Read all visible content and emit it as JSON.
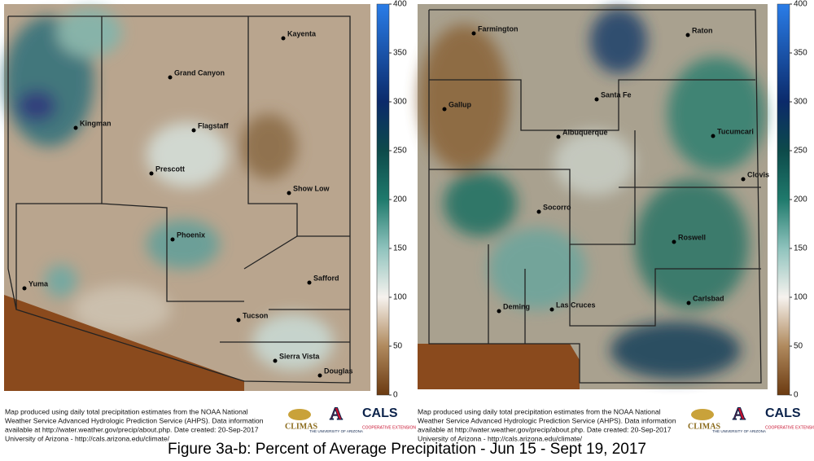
{
  "panels": [
    {
      "cities": [
        "Kayenta",
        "Grand Canyon",
        "Kingman",
        "Flagstaff",
        "Prescott",
        "Show Low",
        "Phoenix",
        "Safford",
        "Yuma",
        "Tucson",
        "Sierra Vista",
        "Douglas"
      ],
      "colorbar": {
        "range": [
          0,
          400
        ],
        "ticks": [
          0,
          50,
          100,
          150,
          200,
          250,
          300,
          350,
          400
        ]
      },
      "footer": [
        "Map produced using daily total precipitation estimates from the NOAA National",
        "Weather Service Advanced Hydrologic Prediction Service (AHPS). Data information",
        "available at http://water.weather.gov/precip/about.php. Date created: 20-Sep-2017",
        "University of Arizona - http://cals.arizona.edu/climate/"
      ],
      "logos": {
        "climas": "CLIMAS",
        "ua": "THE UNIVERSITY OF ARIZONA",
        "cals": "CALS",
        "extension": "COOPERATIVE EXTENSION"
      }
    },
    {
      "cities": [
        "Farmington",
        "Raton",
        "Gallup",
        "Santa Fe",
        "Albuquerque",
        "Tucumcari",
        "Clovis",
        "Socorro",
        "Roswell",
        "Carlsbad",
        "Deming",
        "Las Cruces"
      ],
      "colorbar": {
        "range": [
          0,
          400
        ],
        "ticks": [
          0,
          50,
          100,
          150,
          200,
          250,
          300,
          350,
          400
        ]
      },
      "footer": [
        "Map produced using daily total precipitation estimates from the NOAA National",
        "Weather Service Advanced Hydrologic Prediction Service (AHPS). Data information",
        "available at http://water.weather.gov/precip/about.php. Date created: 20-Sep-2017",
        "University of Arizona - http://cals.arizona.edu/climate/"
      ],
      "logos": {
        "climas": "CLIMAS",
        "ua": "THE UNIVERSITY OF ARIZONA",
        "cals": "CALS",
        "extension": "COOPERATIVE EXTENSION"
      }
    }
  ],
  "caption": "Figure 3a-b: Percent of Average Precipitation - Jun 15 - Sept 19, 2017"
}
